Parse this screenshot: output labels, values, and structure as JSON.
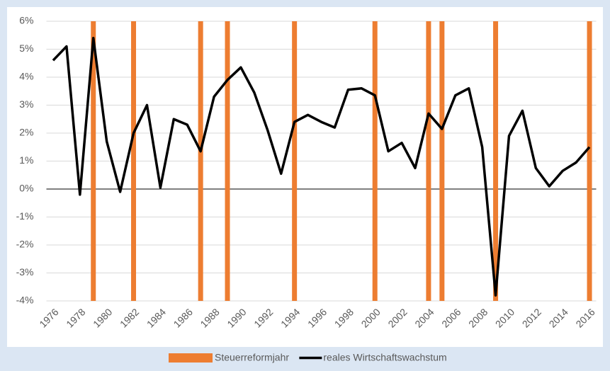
{
  "chart_data": {
    "type": "line",
    "categories": [
      "1976",
      null,
      "1978",
      null,
      "1980",
      null,
      "1982",
      null,
      "1984",
      null,
      "1986",
      null,
      "1988",
      null,
      "1990",
      null,
      "1992",
      null,
      "1994",
      null,
      "1996",
      null,
      "1998",
      null,
      "2000",
      null,
      "2002",
      null,
      "2004",
      null,
      "2006",
      null,
      "2008",
      null,
      "2010",
      null,
      "2012",
      null,
      "2014",
      null,
      "2016"
    ],
    "series": [
      {
        "name": "Steuerreformjahr",
        "type": "bar",
        "axis": "y2",
        "color": "#ed7d31",
        "values": [
          null,
          null,
          null,
          1,
          null,
          null,
          1,
          null,
          null,
          null,
          null,
          1,
          null,
          1,
          null,
          null,
          null,
          null,
          1,
          null,
          null,
          null,
          null,
          null,
          1,
          null,
          null,
          null,
          1,
          1,
          null,
          null,
          null,
          1,
          null,
          null,
          null,
          null,
          null,
          null,
          1
        ]
      },
      {
        "name": "reales Wirtschaftswachstum",
        "type": "line",
        "color": "#000000",
        "values": [
          4.6,
          5.1,
          -0.2,
          5.4,
          1.7,
          -0.1,
          2.0,
          3.0,
          0.05,
          2.5,
          2.3,
          1.35,
          3.3,
          3.9,
          4.35,
          3.45,
          2.1,
          0.55,
          2.4,
          2.65,
          2.4,
          2.2,
          3.55,
          3.6,
          3.35,
          1.35,
          1.65,
          0.75,
          2.7,
          2.15,
          3.35,
          3.6,
          1.5,
          -3.8,
          1.9,
          2.8,
          0.75,
          0.1,
          0.65,
          0.95,
          1.5
        ]
      }
    ],
    "ylim": [
      -4,
      6
    ],
    "yticks": [
      {
        "value": 6,
        "label": "6%"
      },
      {
        "value": 5,
        "label": "5%"
      },
      {
        "value": 4,
        "label": "4%"
      },
      {
        "value": 3,
        "label": "3%"
      },
      {
        "value": 2,
        "label": "2%"
      },
      {
        "value": 1,
        "label": "1%"
      },
      {
        "value": 0,
        "label": "0%"
      },
      {
        "value": -1,
        "label": "-1%"
      },
      {
        "value": -2,
        "label": "-2%"
      },
      {
        "value": -3,
        "label": "-3%"
      },
      {
        "value": -4,
        "label": "-4%"
      }
    ],
    "y2lim": [
      0,
      1
    ],
    "grid": true,
    "legend": "bottom"
  }
}
